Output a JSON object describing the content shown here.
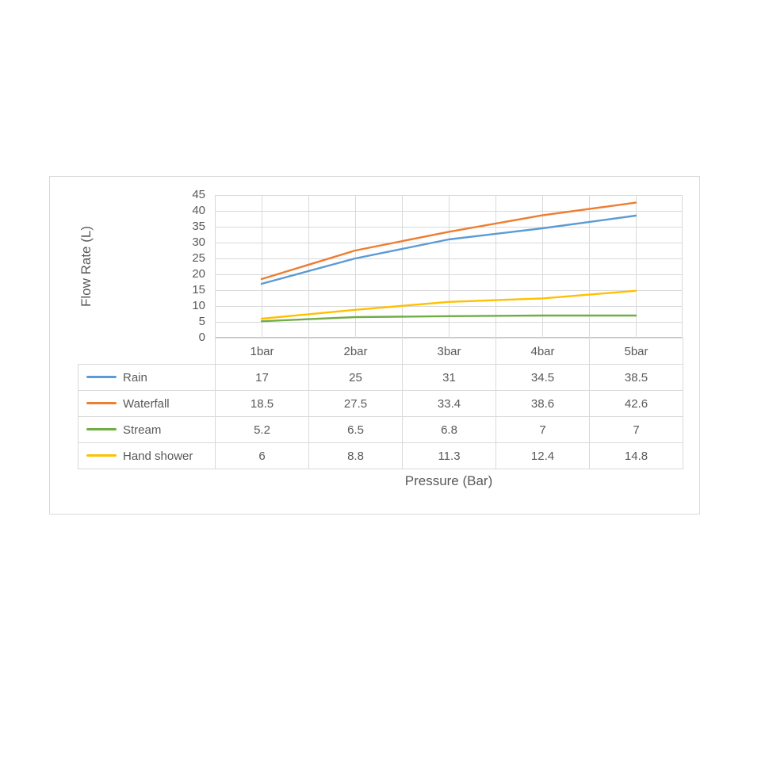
{
  "chart": {
    "y_axis_title": "Flow Rate (L)",
    "x_axis_title": "Pressure (Bar)",
    "text_color": "#595959",
    "grid_color": "#D9D9D9",
    "axis_line_color": "#C6C6C6",
    "chart_border_color": "#D9D9D9",
    "background_color": "#FFFFFF"
  },
  "chart_data": {
    "type": "line",
    "categories": [
      "1bar",
      "2bar",
      "3bar",
      "4bar",
      "5bar"
    ],
    "series": [
      {
        "name": "Rain",
        "color": "#5B9BD5",
        "values": [
          17,
          25,
          31,
          34.5,
          38.5
        ]
      },
      {
        "name": "Waterfall",
        "color": "#ED7D31",
        "values": [
          18.5,
          27.5,
          33.4,
          38.6,
          42.6
        ]
      },
      {
        "name": "Stream",
        "color": "#70AD47",
        "values": [
          5.2,
          6.5,
          6.8,
          7,
          7
        ]
      },
      {
        "name": "Hand shower",
        "color": "#FFC000",
        "values": [
          6,
          8.8,
          11.3,
          12.4,
          14.8
        ]
      }
    ],
    "title": "",
    "xlabel": "Pressure (Bar)",
    "ylabel": "Flow Rate (L)",
    "ylim": [
      0,
      45
    ],
    "y_tick_step": 5,
    "grid": true,
    "x_gridlines_half_category": true,
    "legend_position": "data-table-left-column",
    "data_table_shown": true
  }
}
